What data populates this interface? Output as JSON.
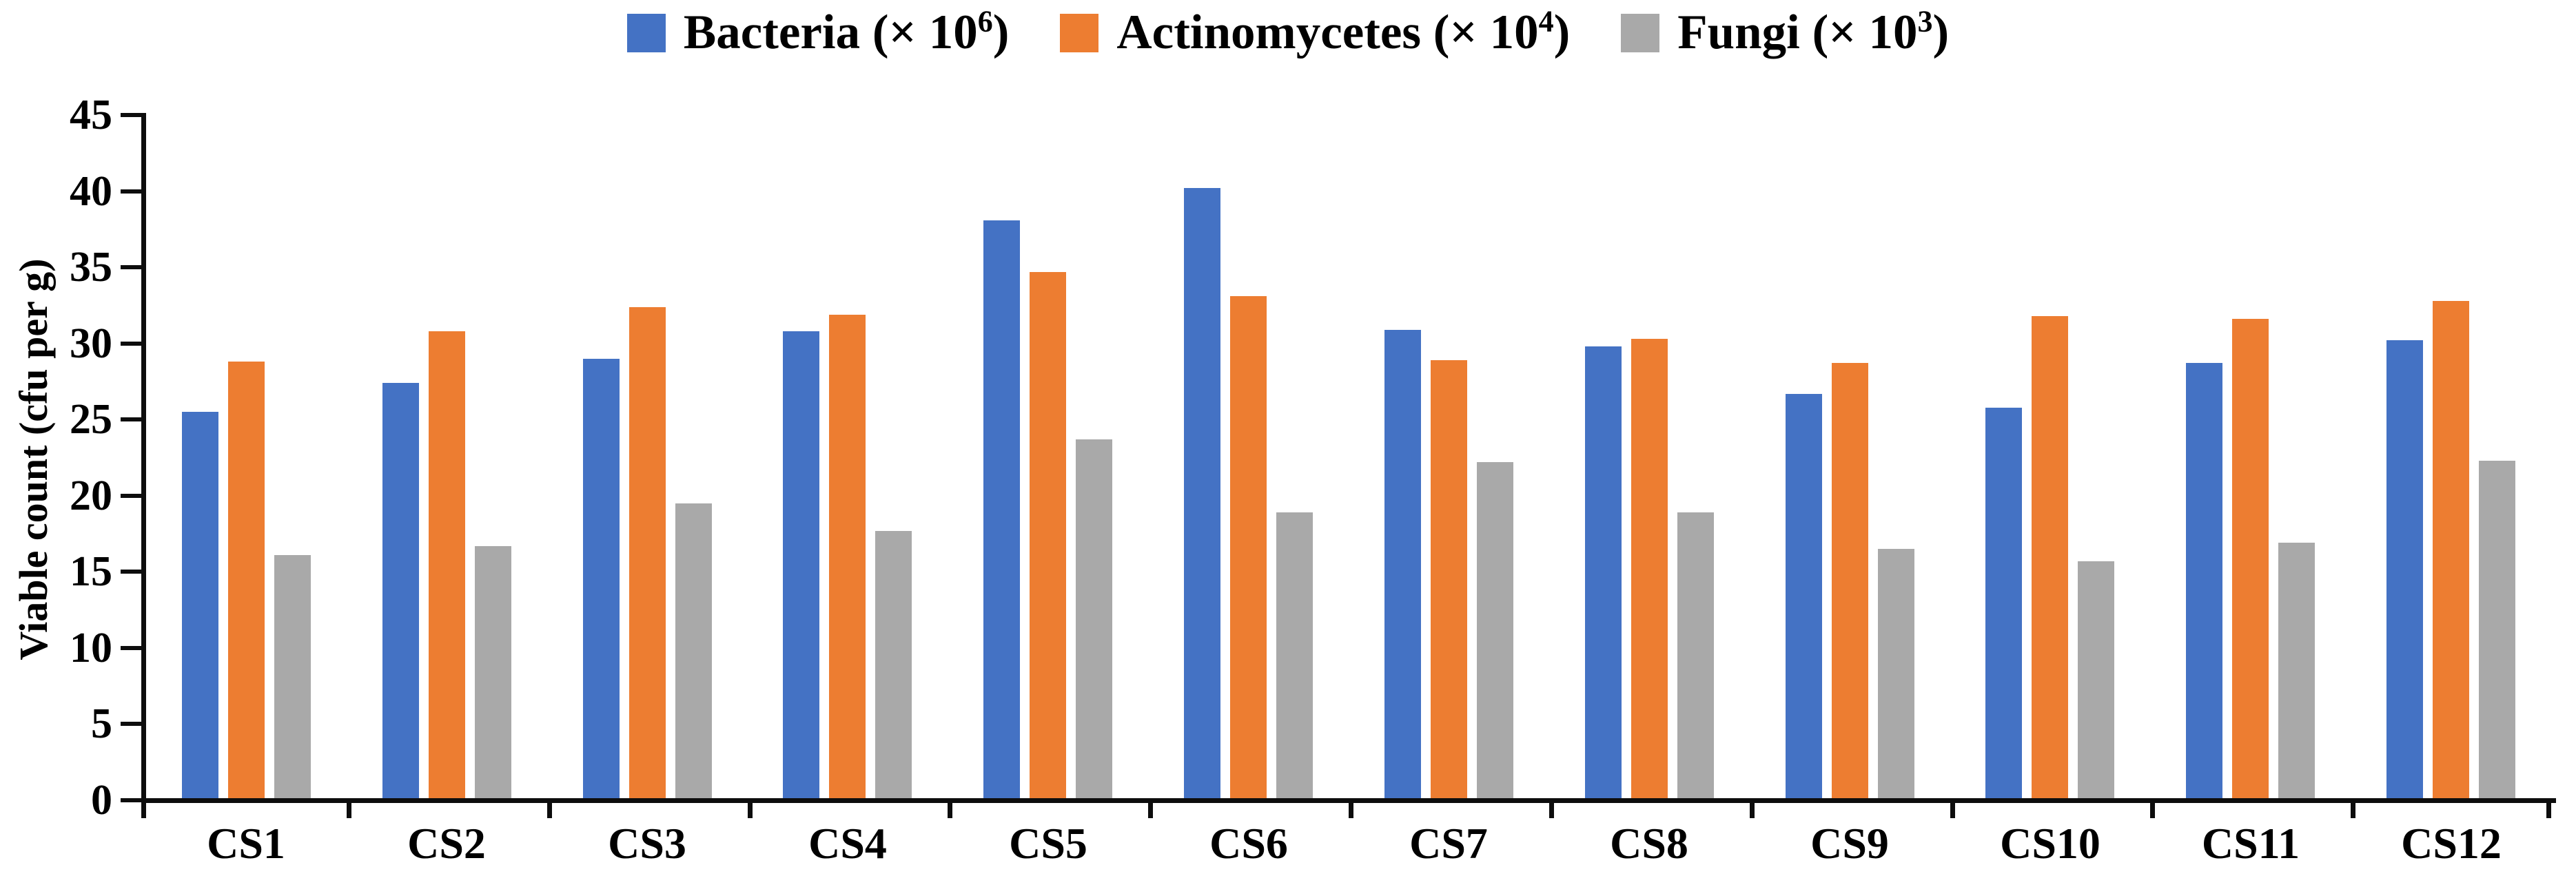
{
  "chart_data": {
    "type": "bar",
    "title": "",
    "xlabel": "",
    "ylabel": "Viable count (cfu per g)",
    "ylim": [
      0,
      45
    ],
    "yticks": [
      0,
      5,
      10,
      15,
      20,
      25,
      30,
      35,
      40,
      45
    ],
    "grid": false,
    "legend_position": "top-center",
    "background_color": "#ffffff",
    "axis_color": "#0d0d0d",
    "categories": [
      "CS1",
      "CS2",
      "CS3",
      "CS4",
      "CS5",
      "CS6",
      "CS7",
      "CS8",
      "CS9",
      "CS10",
      "CS11",
      "CS12"
    ],
    "series": [
      {
        "name": "Bacteria",
        "legend_prefix": "Bacteria (× 10",
        "legend_exponent": "6",
        "legend_suffix": ")",
        "color": "#4472C4",
        "texture": "flat",
        "values": [
          25.5,
          27.4,
          29.0,
          30.8,
          38.1,
          40.2,
          30.9,
          29.8,
          26.7,
          25.8,
          28.7,
          30.2
        ]
      },
      {
        "name": "Actinomycetes",
        "legend_prefix": "Actinomycetes (× 10",
        "legend_exponent": "4",
        "legend_suffix": ")",
        "color": "#ED7D31",
        "texture": "flat",
        "values": [
          28.8,
          30.8,
          32.4,
          31.9,
          34.7,
          33.1,
          28.9,
          30.3,
          28.7,
          31.8,
          31.6,
          32.8
        ]
      },
      {
        "name": "Fungi",
        "legend_prefix": "Fungi (× 10",
        "legend_exponent": "3",
        "legend_suffix": ")",
        "color": "#A9A9A9",
        "texture": "stipple",
        "values": [
          16.1,
          16.7,
          19.5,
          17.7,
          23.7,
          18.9,
          22.2,
          18.9,
          16.5,
          15.7,
          16.9,
          22.3
        ]
      }
    ]
  }
}
